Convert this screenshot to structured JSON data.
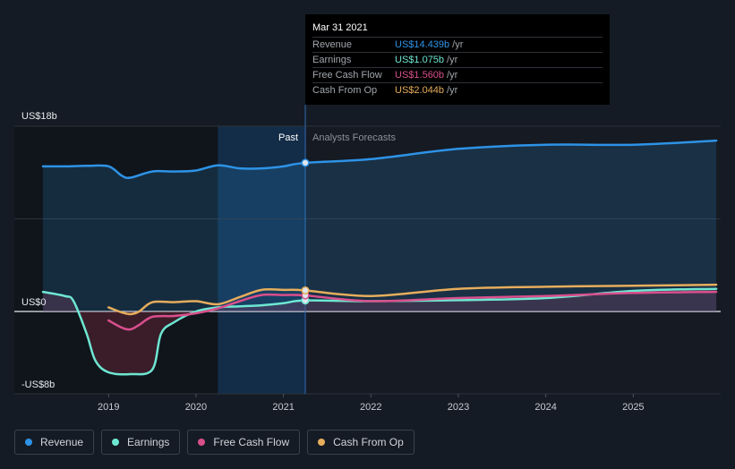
{
  "tooltip": {
    "date": "Mar 31 2021",
    "rows": [
      {
        "label": "Revenue",
        "value": "US$14.439b",
        "unit": "/yr",
        "color": "#2e93e6"
      },
      {
        "label": "Earnings",
        "value": "US$1.075b",
        "unit": "/yr",
        "color": "#6ee7d2"
      },
      {
        "label": "Free Cash Flow",
        "value": "US$1.560b",
        "unit": "/yr",
        "color": "#d94f8c"
      },
      {
        "label": "Cash From Op",
        "value": "US$2.044b",
        "unit": "/yr",
        "color": "#e6ad5c"
      }
    ]
  },
  "legend": [
    {
      "label": "Revenue",
      "color": "#2e93e6"
    },
    {
      "label": "Earnings",
      "color": "#6ee7d2"
    },
    {
      "label": "Free Cash Flow",
      "color": "#d94f8c"
    },
    {
      "label": "Cash From Op",
      "color": "#e6ad5c"
    }
  ],
  "chart_data": {
    "type": "line",
    "y_tick_labels": [
      "US$18b",
      "US$0",
      "-US$8b"
    ],
    "ylim": [
      -8,
      18
    ],
    "xlim": [
      2018.25,
      2026.0
    ],
    "x_ticks": [
      2019,
      2020,
      2021,
      2022,
      2023,
      2024,
      2025
    ],
    "x_tick_labels": [
      "2019",
      "2020",
      "2021",
      "2022",
      "2023",
      "2024",
      "2025"
    ],
    "past_label": "Past",
    "forecast_label": "Analysts Forecasts",
    "divider_x": 2021.25,
    "highlight_range": [
      2020.25,
      2021.25
    ],
    "series": [
      {
        "name": "Revenue",
        "color": "#2e93e6",
        "fill": true,
        "x": [
          2018.25,
          2018.5,
          2018.75,
          2019.0,
          2019.15,
          2019.25,
          2019.5,
          2019.75,
          2020.0,
          2020.25,
          2020.5,
          2020.75,
          2021.0,
          2021.25,
          2022.0,
          2023.0,
          2024.0,
          2025.0,
          2025.95
        ],
        "y": [
          14.1,
          14.1,
          14.15,
          14.1,
          13.2,
          13.0,
          13.6,
          13.6,
          13.7,
          14.2,
          13.9,
          13.9,
          14.1,
          14.44,
          14.8,
          15.8,
          16.2,
          16.2,
          16.6
        ]
      },
      {
        "name": "Earnings",
        "color": "#6ee7d2",
        "fill": true,
        "x": [
          2018.25,
          2018.5,
          2018.6,
          2018.75,
          2018.85,
          2019.0,
          2019.25,
          2019.5,
          2019.6,
          2019.75,
          2020.0,
          2020.25,
          2020.5,
          2020.75,
          2021.0,
          2021.25,
          2022.0,
          2023.0,
          2024.0,
          2025.0,
          2025.95
        ],
        "y": [
          1.9,
          1.5,
          1.0,
          -2.5,
          -5.5,
          -6.8,
          -7.0,
          -6.5,
          -2.5,
          -1.2,
          0.0,
          0.4,
          0.5,
          0.6,
          0.8,
          1.075,
          1.0,
          1.1,
          1.3,
          2.0,
          2.2
        ]
      },
      {
        "name": "Free Cash Flow",
        "color": "#d94f8c",
        "fill": false,
        "x": [
          2019.0,
          2019.15,
          2019.25,
          2019.35,
          2019.5,
          2019.75,
          2020.0,
          2020.25,
          2020.5,
          2020.75,
          2021.0,
          2021.25,
          2022.0,
          2023.0,
          2024.0,
          2025.0,
          2025.95
        ],
        "y": [
          -1.0,
          -1.8,
          -2.0,
          -1.5,
          -0.6,
          -0.5,
          -0.2,
          0.3,
          1.0,
          1.6,
          1.6,
          1.56,
          1.0,
          1.3,
          1.5,
          1.8,
          1.9
        ]
      },
      {
        "name": "Cash From Op",
        "color": "#e6ad5c",
        "fill": false,
        "x": [
          2019.0,
          2019.15,
          2019.25,
          2019.35,
          2019.5,
          2019.75,
          2020.0,
          2020.25,
          2020.5,
          2020.75,
          2021.0,
          2021.25,
          2022.0,
          2023.0,
          2024.0,
          2025.0,
          2025.95
        ],
        "y": [
          0.4,
          -0.1,
          -0.3,
          0.0,
          0.9,
          0.9,
          1.0,
          0.7,
          1.4,
          2.1,
          2.1,
          2.044,
          1.5,
          2.2,
          2.4,
          2.5,
          2.6
        ]
      }
    ]
  }
}
